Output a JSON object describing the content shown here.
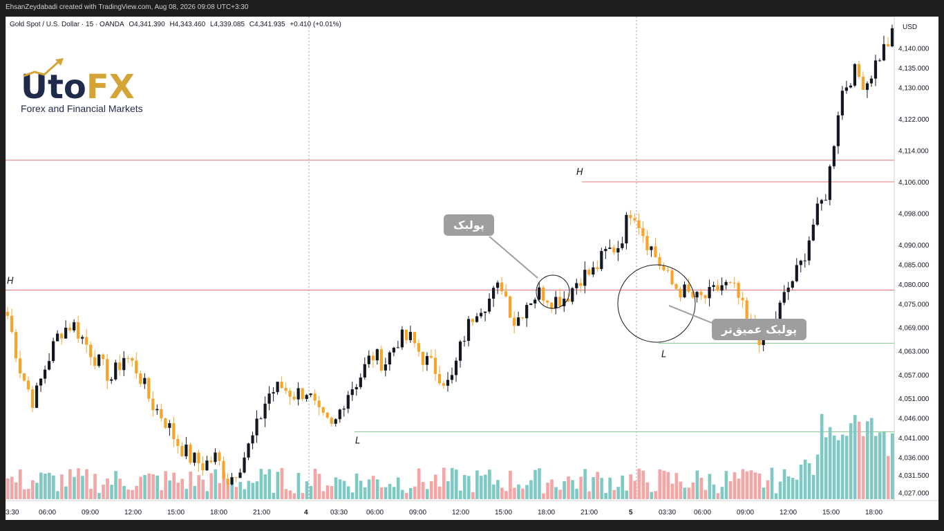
{
  "credit": "EhsanZeydabadi created with TradingView.com, Aug 08, 2026 09:08 UTC+3:30",
  "symbol": {
    "name": "Gold Spot / U.S. Dollar · 15 · OANDA",
    "open": "O4,341.390",
    "high": "H4,343.460",
    "low": "L4,339.085",
    "close": "C4,341.935",
    "change": "+0.410 (+0.01%)"
  },
  "logo": {
    "text_main": "UtoFX",
    "subtitle": "Forex and Financial Markets"
  },
  "callouts": {
    "pullback": "پولبک",
    "deep_pullback": "پولبک عمیق‌تر"
  },
  "colors": {
    "bull": "#131722",
    "bear": "#f7a428",
    "vol_up": "#7fc9c4",
    "vol_down": "#f4a5a5",
    "resistance": "#e57373",
    "support": "#81c784"
  },
  "chart_data": {
    "type": "candlestick",
    "currency": "USD",
    "ylim": [
      4025,
      4148
    ],
    "y_ticks": [
      "4,140.000",
      "4,135.000",
      "4,130.000",
      "4,122.000",
      "4,114.000",
      "4,106.000",
      "4,098.000",
      "4,090.000",
      "4,085.000",
      "4,080.000",
      "4,075.000",
      "4,069.000",
      "4,063.000",
      "4,057.000",
      "4,051.000",
      "4,046.000",
      "4,041.000",
      "4,036.000",
      "4,031.500",
      "4,027.000"
    ],
    "x_ticks": [
      "3:30",
      "06:00",
      "09:00",
      "12:00",
      "15:00",
      "18:00",
      "21:00",
      "4",
      "03:30",
      "06:00",
      "09:00",
      "12:00",
      "15:00",
      "18:00",
      "21:00",
      "5",
      "03:30",
      "06:00",
      "09:00",
      "12:00",
      "15:00",
      "18:00"
    ],
    "horizontal_levels": [
      {
        "price": 4111.5,
        "color": "red"
      },
      {
        "price": 4106.0,
        "color": "red"
      },
      {
        "price": 4078.5,
        "color": "red"
      },
      {
        "price": 4065.0,
        "color": "green"
      },
      {
        "price": 4042.5,
        "color": "green"
      }
    ],
    "annotations": [
      {
        "text": "H",
        "price": 4079
      },
      {
        "text": "L",
        "price": 4043
      },
      {
        "text": "H",
        "price": 4106
      },
      {
        "text": "L",
        "price": 4065
      }
    ],
    "waypoints": [
      4072,
      4058,
      4050,
      4060,
      4068,
      4070,
      4065,
      4060,
      4056,
      4062,
      4058,
      4050,
      4046,
      4040,
      4036,
      4034,
      4036,
      4030,
      4035,
      4042,
      4052,
      4054,
      4052,
      4053,
      4046,
      4043,
      4052,
      4056,
      4062,
      4060,
      4066,
      4066,
      4061,
      4058,
      4054,
      4066,
      4074,
      4076,
      4080,
      4070,
      4076,
      4078,
      4076,
      4077,
      4082,
      4083,
      4088,
      4090,
      4100,
      4092,
      4086,
      4080,
      4078,
      4076,
      4077,
      4080,
      4078,
      4069,
      4066,
      4071,
      4079,
      4085,
      4096,
      4104,
      4128,
      4134,
      4131,
      4138,
      4143
    ]
  }
}
